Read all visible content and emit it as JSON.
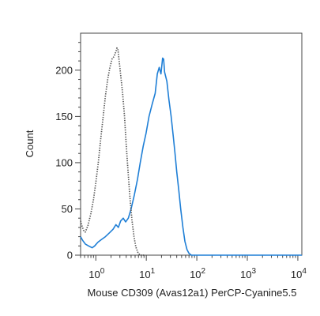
{
  "chart_data": {
    "type": "line",
    "title": "",
    "xlabel": "Mouse CD309 (Avas12a1) PerCP-Cyanine5.5",
    "ylabel": "Count",
    "x_scale": "log",
    "xlim": [
      0.5,
      12000
    ],
    "ylim": [
      0,
      240
    ],
    "grid": false,
    "legend": "none",
    "y_ticks": [
      0,
      50,
      100,
      150,
      200
    ],
    "x_ticks": [
      {
        "value": 1,
        "base": "10",
        "exp": "0"
      },
      {
        "value": 10,
        "base": "10",
        "exp": "1"
      },
      {
        "value": 100,
        "base": "10",
        "exp": "2"
      },
      {
        "value": 1000,
        "base": "10",
        "exp": "3"
      },
      {
        "value": 10000,
        "base": "10",
        "exp": "4"
      }
    ],
    "series": [
      {
        "color": "#1f7fd6",
        "style": "solid",
        "points": [
          [
            0.5,
            20
          ],
          [
            0.55,
            16
          ],
          [
            0.62,
            12
          ],
          [
            0.72,
            10
          ],
          [
            0.85,
            8
          ],
          [
            0.95,
            10
          ],
          [
            1.1,
            14
          ],
          [
            1.3,
            17
          ],
          [
            1.55,
            20
          ],
          [
            1.85,
            24
          ],
          [
            2.2,
            28
          ],
          [
            2.5,
            33
          ],
          [
            2.8,
            30
          ],
          [
            3.1,
            37
          ],
          [
            3.5,
            40
          ],
          [
            3.9,
            36
          ],
          [
            4.4,
            40
          ],
          [
            5.0,
            50
          ],
          [
            5.8,
            65
          ],
          [
            6.7,
            82
          ],
          [
            7.6,
            100
          ],
          [
            8.7,
            118
          ],
          [
            9.9,
            132
          ],
          [
            11.3,
            150
          ],
          [
            13,
            163
          ],
          [
            15,
            175
          ],
          [
            16.5,
            196
          ],
          [
            18,
            203
          ],
          [
            19.5,
            196
          ],
          [
            21,
            213
          ],
          [
            22,
            212
          ],
          [
            23,
            198
          ],
          [
            25.5,
            188
          ],
          [
            28,
            168
          ],
          [
            31,
            150
          ],
          [
            34,
            130
          ],
          [
            37,
            110
          ],
          [
            40,
            90
          ],
          [
            44,
            70
          ],
          [
            48,
            50
          ],
          [
            53,
            30
          ],
          [
            58,
            15
          ],
          [
            64,
            6
          ],
          [
            70,
            2
          ],
          [
            78,
            0
          ],
          [
            100,
            0
          ],
          [
            1000,
            0
          ],
          [
            12000,
            0
          ]
        ]
      },
      {
        "color": "#555555",
        "style": "dotted",
        "points": [
          [
            0.5,
            37
          ],
          [
            0.53,
            32
          ],
          [
            0.57,
            27
          ],
          [
            0.62,
            25
          ],
          [
            0.7,
            32
          ],
          [
            0.8,
            45
          ],
          [
            0.9,
            60
          ],
          [
            1.0,
            78
          ],
          [
            1.12,
            100
          ],
          [
            1.25,
            125
          ],
          [
            1.4,
            150
          ],
          [
            1.55,
            172
          ],
          [
            1.72,
            190
          ],
          [
            1.9,
            203
          ],
          [
            2.1,
            212
          ],
          [
            2.3,
            215
          ],
          [
            2.5,
            220
          ],
          [
            2.62,
            224
          ],
          [
            2.75,
            222
          ],
          [
            2.9,
            210
          ],
          [
            3.1,
            195
          ],
          [
            3.4,
            175
          ],
          [
            3.7,
            150
          ],
          [
            4.0,
            120
          ],
          [
            4.35,
            90
          ],
          [
            4.75,
            62
          ],
          [
            5.2,
            38
          ],
          [
            5.7,
            20
          ],
          [
            6.2,
            9
          ],
          [
            6.8,
            3
          ],
          [
            7.5,
            0
          ],
          [
            9,
            0
          ]
        ]
      }
    ]
  }
}
